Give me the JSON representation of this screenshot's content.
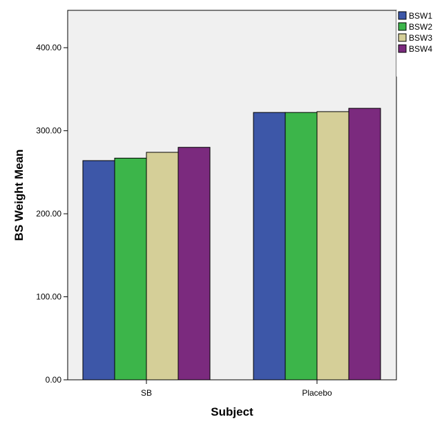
{
  "chart_data": {
    "type": "bar",
    "title": "",
    "xlabel": "Subject",
    "ylabel": "BS Weight Mean",
    "categories": [
      "SB",
      "Placebo"
    ],
    "ylim": [
      0,
      445
    ],
    "yticks": [
      0,
      100,
      200,
      300,
      400
    ],
    "ytick_labels": [
      "0.00",
      "100.00",
      "200.00",
      "300.00",
      "400.00"
    ],
    "grid": false,
    "legend_position": "top-right",
    "series": [
      {
        "name": "BSW1",
        "color": "#3d57a8",
        "values": [
          264,
          322
        ]
      },
      {
        "name": "BSW2",
        "color": "#3cb54a",
        "values": [
          267,
          322
        ]
      },
      {
        "name": "BSW3",
        "color": "#d5cf98",
        "values": [
          274,
          323
        ]
      },
      {
        "name": "BSW4",
        "color": "#7b2a7e",
        "values": [
          280,
          327
        ]
      }
    ],
    "plot_background": "#f0f0f0"
  }
}
